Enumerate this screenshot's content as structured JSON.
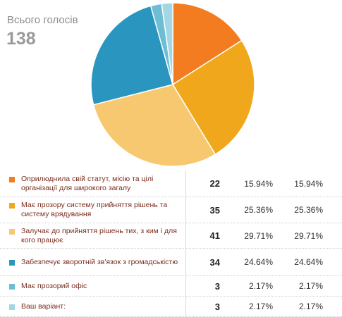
{
  "summary": {
    "label": "Всього голосів",
    "total": "138"
  },
  "chart_data": {
    "type": "pie",
    "title": "",
    "slices": [
      {
        "label": "Оприлюднила свій статут, місію та цілі організації для широкого загалу",
        "value": 22,
        "color": "#f47c20"
      },
      {
        "label": "Має прозору систему прийняття рішень та систему врядування",
        "value": 35,
        "color": "#f0a71c"
      },
      {
        "label": "Залучає до прийняття рішень тих, з ким і для кого працює",
        "value": 41,
        "color": "#f8c870"
      },
      {
        "label": "Забезпечує зворотній зв'язок з громадськістю",
        "value": 34,
        "color": "#2a96bf"
      },
      {
        "label": "Має прозорий офіс",
        "value": 3,
        "color": "#6dbdd4"
      },
      {
        "label": "Ваш варіант:",
        "value": 3,
        "color": "#a4d7e5"
      }
    ]
  },
  "results": [
    {
      "label": "Оприлюднила свій статут, місію та цілі організації для широкого загалу",
      "votes": "22",
      "pct": "15.94%",
      "pct2": "15.94%",
      "color": "#f47c20"
    },
    {
      "label": "Має прозору систему прийняття рішень та систему врядування",
      "votes": "35",
      "pct": "25.36%",
      "pct2": "25.36%",
      "color": "#f0a71c"
    },
    {
      "label": "Залучає до прийняття рішень тих, з ким і для кого працює",
      "votes": "41",
      "pct": "29.71%",
      "pct2": "29.71%",
      "color": "#f8c870"
    },
    {
      "label": "Забезпечує зворотній зв'язок з громадськістю",
      "votes": "34",
      "pct": "24.64%",
      "pct2": "24.64%",
      "color": "#2a96bf"
    },
    {
      "label": "Має прозорий офіс",
      "votes": "3",
      "pct": "2.17%",
      "pct2": "2.17%",
      "color": "#6dbdd4"
    },
    {
      "label": "Ваш варіант:",
      "votes": "3",
      "pct": "2.17%",
      "pct2": "2.17%",
      "color": "#a4d7e5"
    }
  ]
}
